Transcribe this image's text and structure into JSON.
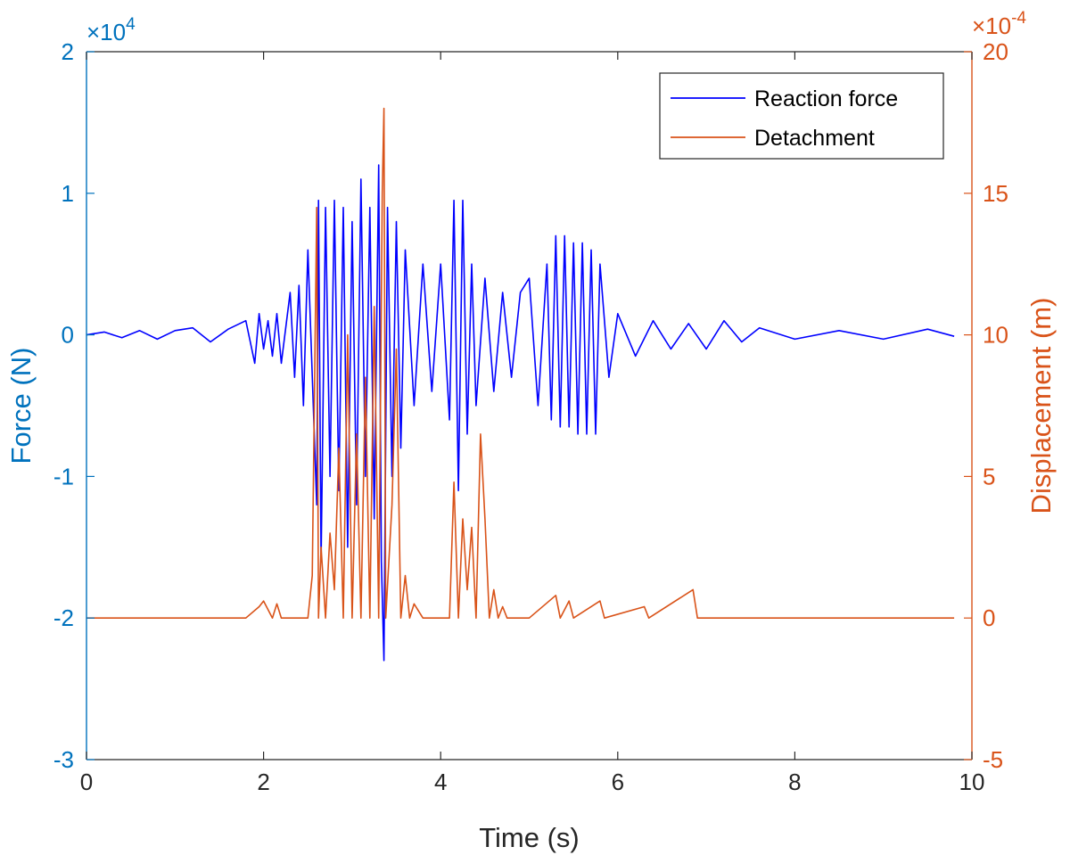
{
  "chart_data": {
    "type": "line",
    "title": "",
    "xlabel": "Time (s)",
    "xlim": [
      0,
      10
    ],
    "xticks": [
      0,
      2,
      4,
      6,
      8,
      10
    ],
    "xtick_labels": [
      "0",
      "2",
      "4",
      "6",
      "8",
      "10"
    ],
    "y_left": {
      "label": "Force (N)",
      "exponent_label": "×10",
      "exponent_power": "4",
      "lim": [
        -3,
        2
      ],
      "ticks": [
        -3,
        -2,
        -1,
        0,
        1,
        2
      ],
      "tick_labels": [
        "-3",
        "-2",
        "-1",
        "0",
        "1",
        "2"
      ],
      "color": "#0072BD"
    },
    "y_right": {
      "label": "Displacement (m)",
      "exponent_label": "×10",
      "exponent_power": "-4",
      "lim": [
        -5,
        20
      ],
      "ticks": [
        -5,
        0,
        5,
        10,
        15,
        20
      ],
      "tick_labels": [
        "-5",
        "0",
        "5",
        "10",
        "15",
        "20"
      ],
      "color": "#D95319"
    },
    "legend": {
      "position": "top-right",
      "entries": [
        "Reaction force",
        "Detachment"
      ]
    },
    "series": [
      {
        "name": "Reaction force",
        "axis": "left",
        "color": "#0000FF",
        "x": [
          0.0,
          0.2,
          0.4,
          0.6,
          0.8,
          1.0,
          1.2,
          1.4,
          1.6,
          1.8,
          1.9,
          1.95,
          2.0,
          2.05,
          2.1,
          2.15,
          2.2,
          2.3,
          2.35,
          2.4,
          2.45,
          2.5,
          2.6,
          2.62,
          2.65,
          2.7,
          2.75,
          2.8,
          2.85,
          2.9,
          2.95,
          3.0,
          3.05,
          3.1,
          3.15,
          3.2,
          3.25,
          3.3,
          3.33,
          3.36,
          3.4,
          3.45,
          3.5,
          3.55,
          3.6,
          3.7,
          3.8,
          3.9,
          4.0,
          4.1,
          4.15,
          4.2,
          4.25,
          4.3,
          4.35,
          4.4,
          4.5,
          4.6,
          4.7,
          4.8,
          4.9,
          5.0,
          5.1,
          5.2,
          5.25,
          5.3,
          5.35,
          5.4,
          5.45,
          5.5,
          5.55,
          5.6,
          5.65,
          5.7,
          5.75,
          5.8,
          5.9,
          6.0,
          6.2,
          6.4,
          6.6,
          6.8,
          7.0,
          7.2,
          7.4,
          7.6,
          8.0,
          8.5,
          9.0,
          9.5,
          9.8
        ],
        "values": [
          0.0,
          0.02,
          -0.02,
          0.03,
          -0.03,
          0.03,
          0.05,
          -0.05,
          0.04,
          0.1,
          -0.2,
          0.15,
          -0.1,
          0.1,
          -0.15,
          0.15,
          -0.2,
          0.3,
          -0.3,
          0.35,
          -0.5,
          0.6,
          -1.2,
          0.95,
          -1.6,
          0.9,
          -1.0,
          0.95,
          -1.1,
          0.9,
          -1.5,
          0.8,
          -1.2,
          1.1,
          -1.0,
          0.9,
          -1.3,
          1.2,
          -1.6,
          -2.3,
          0.9,
          -1.0,
          0.8,
          -0.8,
          0.6,
          -0.5,
          0.5,
          -0.4,
          0.5,
          -0.6,
          0.95,
          -1.1,
          0.95,
          -0.7,
          0.5,
          -0.5,
          0.4,
          -0.4,
          0.3,
          -0.3,
          0.3,
          0.4,
          -0.5,
          0.5,
          -0.6,
          0.7,
          -0.65,
          0.7,
          -0.65,
          0.65,
          -0.7,
          0.65,
          -0.7,
          0.6,
          -0.7,
          0.5,
          -0.3,
          0.15,
          -0.15,
          0.1,
          -0.1,
          0.08,
          -0.1,
          0.1,
          -0.05,
          0.05,
          -0.03,
          0.03,
          -0.03,
          0.04,
          -0.01
        ]
      },
      {
        "name": "Detachment",
        "axis": "right",
        "color": "#D95319",
        "x": [
          0.0,
          1.8,
          1.95,
          2.0,
          2.1,
          2.15,
          2.2,
          2.35,
          2.5,
          2.55,
          2.6,
          2.62,
          2.65,
          2.7,
          2.75,
          2.8,
          2.85,
          2.9,
          2.95,
          3.0,
          3.05,
          3.1,
          3.15,
          3.2,
          3.25,
          3.3,
          3.34,
          3.36,
          3.38,
          3.45,
          3.5,
          3.55,
          3.6,
          3.65,
          3.7,
          3.8,
          3.9,
          4.0,
          4.1,
          4.15,
          4.2,
          4.25,
          4.3,
          4.35,
          4.4,
          4.45,
          4.5,
          4.55,
          4.6,
          4.65,
          4.7,
          4.75,
          4.8,
          4.9,
          5.0,
          5.3,
          5.35,
          5.45,
          5.5,
          5.8,
          5.85,
          6.3,
          6.35,
          6.85,
          6.9,
          6.95,
          7.5,
          8.0,
          9.0,
          9.8
        ],
        "values": [
          0.0,
          0.0,
          0.4,
          0.6,
          0.0,
          0.5,
          0.0,
          0.0,
          0.0,
          1.5,
          14.5,
          0.0,
          2.5,
          0.0,
          3.0,
          1.0,
          6.0,
          0.0,
          10.0,
          0.0,
          6.5,
          0.0,
          8.5,
          0.0,
          11.0,
          0.0,
          15.0,
          18.0,
          0.0,
          4.0,
          9.5,
          0.0,
          1.5,
          0.0,
          0.5,
          0.0,
          0.0,
          0.0,
          0.0,
          4.8,
          0.0,
          3.5,
          1.0,
          3.2,
          0.0,
          6.5,
          3.5,
          0.0,
          1.0,
          0.0,
          0.4,
          0.0,
          0.0,
          0.0,
          0.0,
          0.8,
          0.0,
          0.6,
          0.0,
          0.6,
          0.0,
          0.4,
          0.0,
          1.0,
          0.0,
          0.0,
          0.0,
          0.0,
          0.0,
          0.0
        ]
      }
    ]
  }
}
